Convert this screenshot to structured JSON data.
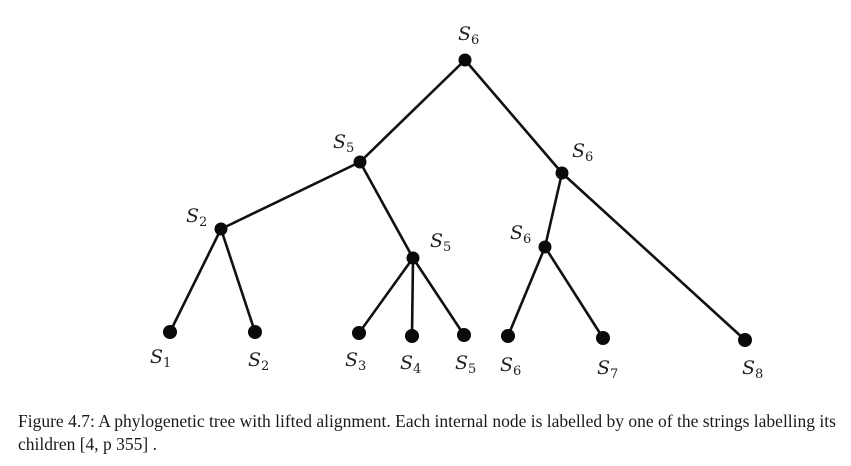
{
  "figure": {
    "caption": "Figure 4.7: A phylogenetic tree with lifted alignment. Each internal node is labelled by one of the strings labelling its children [4, p 355] .",
    "colors": {
      "ink": "#111111",
      "background": "#ffffff"
    },
    "nodes": [
      {
        "id": "root",
        "label": "S",
        "sub": "6",
        "kind": "internal"
      },
      {
        "id": "n5",
        "label": "S",
        "sub": "5",
        "kind": "internal"
      },
      {
        "id": "n6a",
        "label": "S",
        "sub": "6",
        "kind": "internal"
      },
      {
        "id": "n2",
        "label": "S",
        "sub": "2",
        "kind": "internal"
      },
      {
        "id": "n5b",
        "label": "S",
        "sub": "5",
        "kind": "internal"
      },
      {
        "id": "n6b",
        "label": "S",
        "sub": "6",
        "kind": "internal"
      },
      {
        "id": "leaf1",
        "label": "S",
        "sub": "1",
        "kind": "leaf"
      },
      {
        "id": "leaf2",
        "label": "S",
        "sub": "2",
        "kind": "leaf"
      },
      {
        "id": "leaf3",
        "label": "S",
        "sub": "3",
        "kind": "leaf"
      },
      {
        "id": "leaf4",
        "label": "S",
        "sub": "4",
        "kind": "leaf"
      },
      {
        "id": "leaf5",
        "label": "S",
        "sub": "5",
        "kind": "leaf"
      },
      {
        "id": "leaf6",
        "label": "S",
        "sub": "6",
        "kind": "leaf"
      },
      {
        "id": "leaf7",
        "label": "S",
        "sub": "7",
        "kind": "leaf"
      },
      {
        "id": "leaf8",
        "label": "S",
        "sub": "8",
        "kind": "leaf"
      }
    ],
    "edges": [
      [
        "root",
        "n5"
      ],
      [
        "root",
        "n6a"
      ],
      [
        "n5",
        "n2"
      ],
      [
        "n5",
        "n5b"
      ],
      [
        "n2",
        "leaf1"
      ],
      [
        "n2",
        "leaf2"
      ],
      [
        "n5b",
        "leaf3"
      ],
      [
        "n5b",
        "leaf4"
      ],
      [
        "n5b",
        "leaf5"
      ],
      [
        "n6a",
        "n6b"
      ],
      [
        "n6a",
        "leaf8"
      ],
      [
        "n6b",
        "leaf6"
      ],
      [
        "n6b",
        "leaf7"
      ]
    ]
  }
}
